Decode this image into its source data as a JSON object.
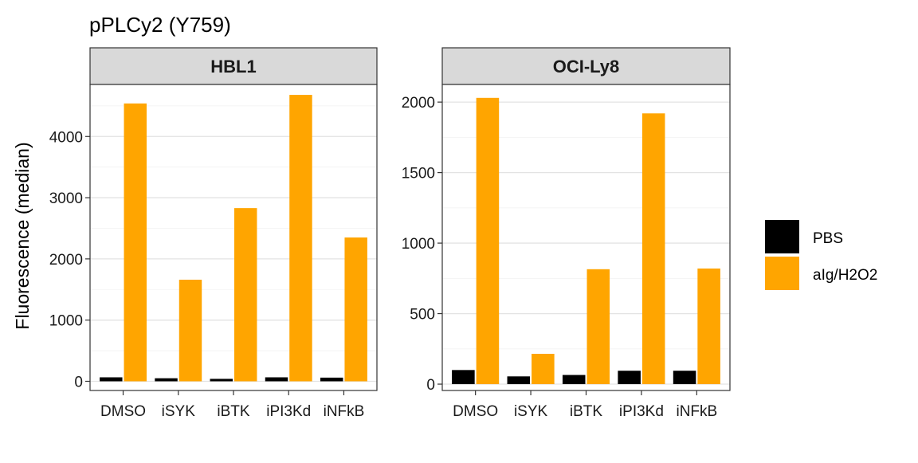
{
  "chart_data": {
    "type": "bar",
    "title": "pPLCy2 (Y759)",
    "ylabel": "Fluorescence (median)",
    "xlabel": "",
    "categories": [
      "DMSO",
      "iSYK",
      "iBTK",
      "iPI3Kd",
      "iNFkB"
    ],
    "legend_position": "right",
    "grid": true,
    "series_colors": {
      "PBS": "#000000",
      "aIg/H2O2": "#FFA500"
    },
    "legend": [
      "PBS",
      "aIg/H2O2"
    ],
    "panels": [
      {
        "strip": "HBL1",
        "ylim": [
          -150,
          4850
        ],
        "yticks": [
          0,
          1000,
          2000,
          3000,
          4000
        ],
        "series": [
          {
            "name": "PBS",
            "values": [
              65,
              50,
              40,
              65,
              60
            ]
          },
          {
            "name": "aIg/H2O2",
            "values": [
              4540,
              1660,
              2830,
              4680,
              2350
            ]
          }
        ]
      },
      {
        "strip": "OCI-Ly8",
        "ylim": [
          -45,
          2125
        ],
        "yticks": [
          0,
          500,
          1000,
          1500,
          2000
        ],
        "series": [
          {
            "name": "PBS",
            "values": [
              100,
              55,
              65,
              95,
              95
            ]
          },
          {
            "name": "aIg/H2O2",
            "values": [
              2030,
              215,
              815,
              1920,
              820
            ]
          }
        ]
      }
    ]
  }
}
